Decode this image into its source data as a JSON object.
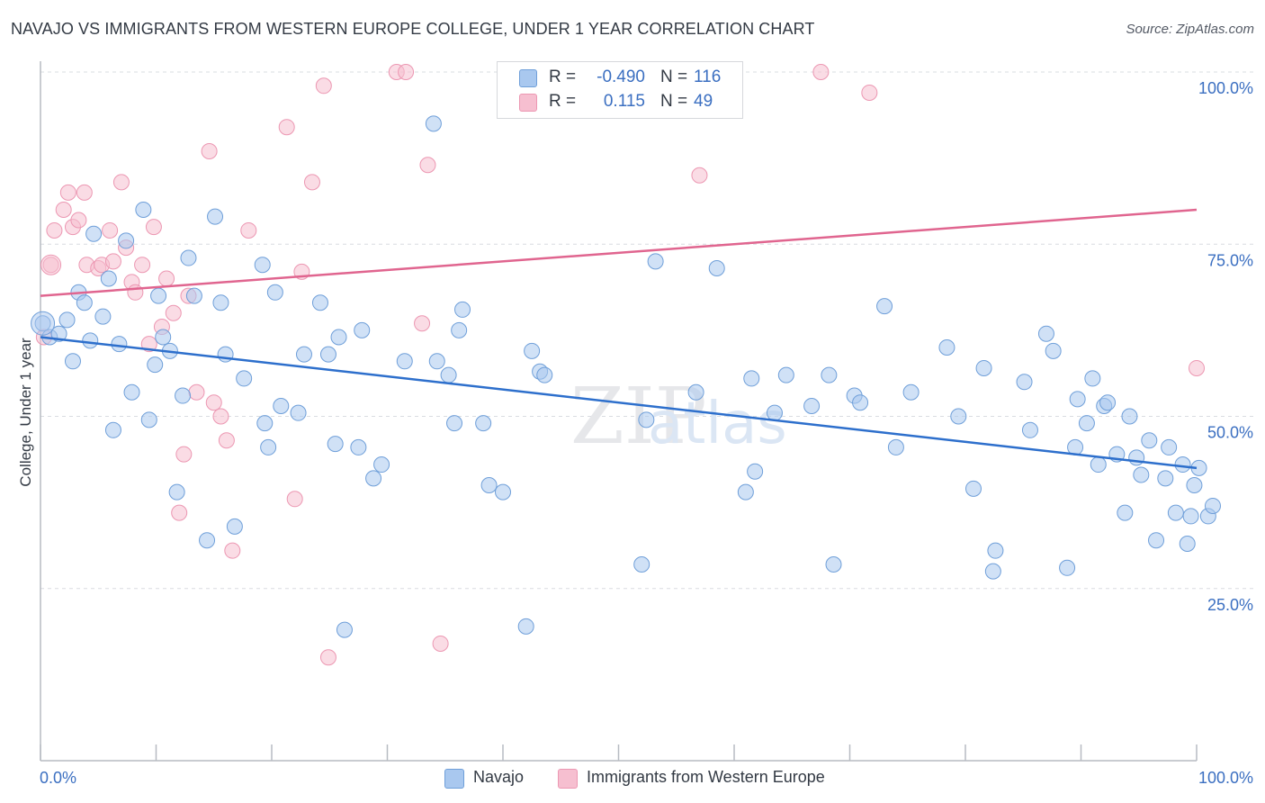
{
  "title": "NAVAJO VS IMMIGRANTS FROM WESTERN EUROPE COLLEGE, UNDER 1 YEAR CORRELATION CHART",
  "source": "Source: ZipAtlas.com",
  "watermark": {
    "zip": "ZIP",
    "atlas": "atlas"
  },
  "colors": {
    "navajo_fill": "#a9c8ef",
    "navajo_stroke": "#6f9fd9",
    "navajo_line": "#2d6fcc",
    "immigrants_fill": "#f6bfd0",
    "immigrants_stroke": "#ec97b2",
    "immigrants_line": "#e0658f",
    "tick_text": "#3b6fc1",
    "grid": "#d9dce1"
  },
  "legend": {
    "rows": [
      {
        "series": "Navajo",
        "r_label": "R =",
        "r_value": "-0.490",
        "n_label": "N =",
        "n_value": "116"
      },
      {
        "series": "Immigrants from Western Europe",
        "r_label": "R =",
        "r_value": "0.115",
        "n_label": "N =",
        "n_value": "49"
      }
    ]
  },
  "chart_data": {
    "type": "scatter",
    "title": "NAVAJO VS IMMIGRANTS FROM WESTERN EUROPE COLLEGE, UNDER 1 YEAR CORRELATION CHART",
    "xlabel": "",
    "ylabel": "College, Under 1 year",
    "xlim": [
      0,
      100
    ],
    "ylim": [
      0,
      100
    ],
    "x_tick_labels": [
      "0.0%",
      "100.0%"
    ],
    "y_tick_labels": [
      "25.0%",
      "50.0%",
      "75.0%",
      "100.0%"
    ],
    "y_tick_values": [
      25,
      50,
      75,
      100
    ],
    "grid": "horizontal dashed",
    "legend_position": "top-center and bottom",
    "series": [
      {
        "name": "Navajo",
        "trend": {
          "x": [
            0,
            100
          ],
          "y": [
            61.5,
            42.5
          ]
        },
        "points": [
          [
            0.2,
            63.5
          ],
          [
            0.8,
            61.5
          ],
          [
            1.6,
            62.0
          ],
          [
            2.3,
            64.0
          ],
          [
            2.8,
            58.0
          ],
          [
            3.3,
            68.0
          ],
          [
            3.8,
            66.5
          ],
          [
            4.3,
            61.0
          ],
          [
            4.6,
            76.5
          ],
          [
            5.4,
            64.5
          ],
          [
            5.9,
            70.0
          ],
          [
            6.3,
            48.0
          ],
          [
            6.8,
            60.5
          ],
          [
            7.4,
            75.5
          ],
          [
            7.9,
            53.5
          ],
          [
            8.9,
            80.0
          ],
          [
            9.4,
            49.5
          ],
          [
            9.9,
            57.5
          ],
          [
            10.2,
            67.5
          ],
          [
            10.6,
            61.5
          ],
          [
            11.2,
            59.5
          ],
          [
            11.8,
            39.0
          ],
          [
            12.3,
            53.0
          ],
          [
            12.8,
            73.0
          ],
          [
            13.3,
            67.5
          ],
          [
            14.4,
            32.0
          ],
          [
            15.1,
            79.0
          ],
          [
            15.6,
            66.5
          ],
          [
            16.0,
            59.0
          ],
          [
            16.8,
            34.0
          ],
          [
            17.6,
            55.5
          ],
          [
            19.2,
            72.0
          ],
          [
            19.4,
            49.0
          ],
          [
            19.7,
            45.5
          ],
          [
            20.3,
            68.0
          ],
          [
            20.8,
            51.5
          ],
          [
            22.3,
            50.5
          ],
          [
            22.8,
            59.0
          ],
          [
            24.2,
            66.5
          ],
          [
            24.9,
            59.0
          ],
          [
            25.5,
            46.0
          ],
          [
            25.8,
            61.5
          ],
          [
            26.3,
            19.0
          ],
          [
            27.5,
            45.5
          ],
          [
            27.8,
            62.5
          ],
          [
            28.8,
            41.0
          ],
          [
            29.5,
            43.0
          ],
          [
            31.5,
            58.0
          ],
          [
            34.0,
            92.5
          ],
          [
            34.3,
            58.0
          ],
          [
            35.3,
            56.0
          ],
          [
            35.8,
            49.0
          ],
          [
            36.2,
            62.5
          ],
          [
            36.5,
            65.5
          ],
          [
            38.3,
            49.0
          ],
          [
            38.8,
            40.0
          ],
          [
            40.0,
            39.0
          ],
          [
            42.0,
            19.5
          ],
          [
            42.5,
            59.5
          ],
          [
            43.2,
            56.5
          ],
          [
            43.6,
            56.0
          ],
          [
            52.0,
            28.5
          ],
          [
            52.4,
            49.5
          ],
          [
            53.2,
            72.5
          ],
          [
            56.7,
            53.5
          ],
          [
            58.5,
            71.5
          ],
          [
            61.0,
            39.0
          ],
          [
            61.5,
            55.5
          ],
          [
            61.8,
            42.0
          ],
          [
            63.5,
            50.5
          ],
          [
            64.5,
            56.0
          ],
          [
            66.7,
            51.5
          ],
          [
            68.2,
            56.0
          ],
          [
            68.6,
            28.5
          ],
          [
            70.4,
            53.0
          ],
          [
            70.9,
            52.0
          ],
          [
            73.0,
            66.0
          ],
          [
            74.0,
            45.5
          ],
          [
            75.3,
            53.5
          ],
          [
            78.4,
            60.0
          ],
          [
            79.4,
            50.0
          ],
          [
            80.7,
            39.5
          ],
          [
            81.6,
            57.0
          ],
          [
            82.4,
            27.5
          ],
          [
            82.6,
            30.5
          ],
          [
            85.1,
            55.0
          ],
          [
            85.6,
            48.0
          ],
          [
            87.0,
            62.0
          ],
          [
            87.6,
            59.5
          ],
          [
            88.8,
            28.0
          ],
          [
            89.5,
            45.5
          ],
          [
            89.7,
            52.5
          ],
          [
            90.5,
            49.0
          ],
          [
            91.0,
            55.5
          ],
          [
            91.5,
            43.0
          ],
          [
            92.0,
            51.5
          ],
          [
            92.3,
            52.0
          ],
          [
            93.1,
            44.5
          ],
          [
            93.8,
            36.0
          ],
          [
            94.2,
            50.0
          ],
          [
            94.8,
            44.0
          ],
          [
            95.2,
            41.5
          ],
          [
            95.9,
            46.5
          ],
          [
            96.5,
            32.0
          ],
          [
            97.3,
            41.0
          ],
          [
            97.6,
            45.5
          ],
          [
            98.2,
            36.0
          ],
          [
            98.8,
            43.0
          ],
          [
            99.2,
            31.5
          ],
          [
            99.5,
            35.5
          ],
          [
            99.8,
            40.0
          ],
          [
            100.2,
            42.5
          ],
          [
            101.0,
            35.5
          ],
          [
            101.4,
            37.0
          ]
        ]
      },
      {
        "name": "Immigrants from Western Europe",
        "trend": {
          "x": [
            0,
            100
          ],
          "y": [
            67.5,
            80.0
          ]
        },
        "points": [
          [
            0.3,
            61.5
          ],
          [
            0.9,
            72.0
          ],
          [
            1.2,
            77.0
          ],
          [
            2.0,
            80.0
          ],
          [
            2.4,
            82.5
          ],
          [
            2.8,
            77.5
          ],
          [
            3.3,
            78.5
          ],
          [
            3.8,
            82.5
          ],
          [
            4.0,
            72.0
          ],
          [
            5.0,
            71.5
          ],
          [
            5.3,
            72.0
          ],
          [
            6.0,
            77.0
          ],
          [
            6.3,
            72.5
          ],
          [
            7.0,
            84.0
          ],
          [
            7.4,
            74.5
          ],
          [
            7.9,
            69.5
          ],
          [
            8.2,
            68.0
          ],
          [
            8.8,
            72.0
          ],
          [
            9.4,
            60.5
          ],
          [
            9.8,
            77.5
          ],
          [
            10.5,
            63.0
          ],
          [
            10.9,
            70.0
          ],
          [
            11.5,
            65.0
          ],
          [
            12.0,
            36.0
          ],
          [
            12.4,
            44.5
          ],
          [
            12.8,
            67.5
          ],
          [
            13.5,
            53.5
          ],
          [
            14.6,
            88.5
          ],
          [
            15.0,
            52.0
          ],
          [
            15.6,
            50.0
          ],
          [
            16.1,
            46.5
          ],
          [
            16.6,
            30.5
          ],
          [
            18.0,
            77.0
          ],
          [
            21.3,
            92.0
          ],
          [
            22.0,
            38.0
          ],
          [
            22.6,
            71.0
          ],
          [
            23.5,
            84.0
          ],
          [
            24.5,
            98.0
          ],
          [
            24.9,
            15.0
          ],
          [
            30.8,
            100.0
          ],
          [
            31.6,
            100.0
          ],
          [
            33.0,
            63.5
          ],
          [
            33.5,
            86.5
          ],
          [
            34.6,
            17.0
          ],
          [
            47.0,
            100.0
          ],
          [
            57.0,
            85.0
          ],
          [
            67.5,
            100.0
          ],
          [
            71.7,
            97.0
          ],
          [
            100.0,
            57.0
          ]
        ]
      }
    ]
  }
}
